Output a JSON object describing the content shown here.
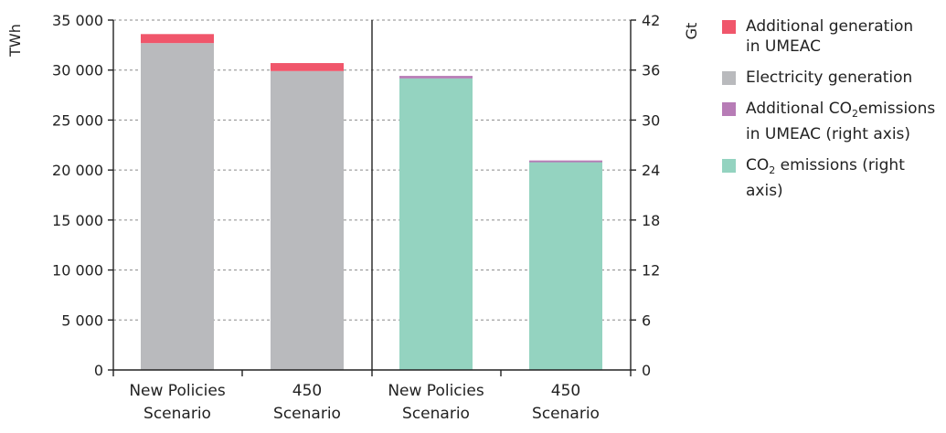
{
  "chart_data": {
    "type": "bar",
    "stacked": true,
    "categories_left": [
      [
        "New Policies",
        "Scenario"
      ],
      [
        "450",
        "Scenario"
      ]
    ],
    "categories_right": [
      [
        "New Policies",
        "Scenario"
      ],
      [
        "450",
        "Scenario"
      ]
    ],
    "left_axis": {
      "label": "TWh",
      "ylim": [
        0,
        35000
      ],
      "ticks": [
        "0",
        "5 000",
        "10 000",
        "15 000",
        "20 000",
        "25 000",
        "30 000",
        "35 000"
      ],
      "tick_values": [
        0,
        5000,
        10000,
        15000,
        20000,
        25000,
        30000,
        35000
      ]
    },
    "right_axis": {
      "label": "Gt",
      "ylim": [
        0,
        42
      ],
      "ticks": [
        "0",
        "6",
        "12",
        "18",
        "24",
        "30",
        "36",
        "42"
      ],
      "tick_values": [
        0,
        6,
        12,
        18,
        24,
        30,
        36,
        42
      ]
    },
    "left_series": [
      {
        "name": "Electricity generation",
        "color": "#b9babd",
        "values": [
          32700,
          29900
        ]
      },
      {
        "name": "Additional generation in UMEAC",
        "color": "#f0566b",
        "values": [
          900,
          800
        ]
      }
    ],
    "right_series": [
      {
        "name": "CO2 emissions (right axis)",
        "color": "#94d3c0",
        "values": [
          35.0,
          25.0
        ]
      },
      {
        "name": "Additional CO2 emissions in UMEAC (right axis)",
        "color": "#b77cb6",
        "values": [
          0.3,
          0.15
        ]
      }
    ],
    "grid": true,
    "legend_position": "right"
  },
  "legend": [
    {
      "color": "#f0566b",
      "lines": [
        [
          "Additional generation"
        ],
        [
          "in UMEAC"
        ]
      ]
    },
    {
      "color": "#b9babd",
      "lines": [
        [
          "Electricity generation"
        ]
      ]
    },
    {
      "color": "#b77cb6",
      "lines": [
        [
          "Additional CO",
          "2",
          "emissions"
        ],
        [
          "in UMEAC (right axis)"
        ]
      ]
    },
    {
      "color": "#94d3c0",
      "lines": [
        [
          "CO",
          "2",
          " emissions (right axis)"
        ]
      ]
    }
  ]
}
